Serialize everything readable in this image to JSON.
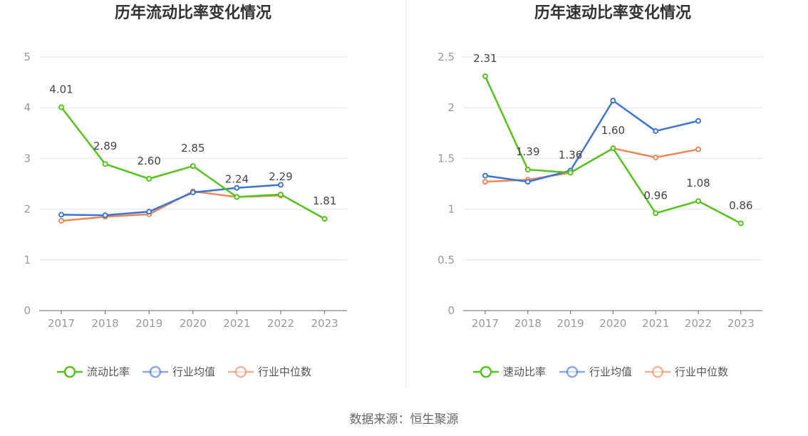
{
  "source": "数据来源：恒生聚源",
  "chart_data": [
    {
      "type": "line",
      "title": "历年流动比率变化情况",
      "categories": [
        "2017",
        "2018",
        "2019",
        "2020",
        "2021",
        "2022",
        "2023"
      ],
      "ylim": [
        0,
        5
      ],
      "yticks": [
        0,
        1,
        2,
        3,
        4,
        5
      ],
      "ytick_labels": [
        "0",
        "1",
        "2",
        "3",
        "4",
        "5"
      ],
      "grid": true,
      "legend_position": "bottom",
      "series": [
        {
          "name": "流动比率",
          "color": "#52c41a",
          "values": [
            4.01,
            2.89,
            2.6,
            2.85,
            2.24,
            2.29,
            1.81
          ],
          "labels": [
            "4.01",
            "2.89",
            "2.60",
            "2.85",
            "2.24",
            "2.29",
            "1.81"
          ]
        },
        {
          "name": "行业均值",
          "color": "#3b73d9",
          "values": [
            1.89,
            1.88,
            1.95,
            2.33,
            2.42,
            2.48,
            null
          ]
        },
        {
          "name": "行业中位数",
          "color": "#ee8655",
          "values": [
            1.77,
            1.85,
            1.9,
            2.35,
            2.24,
            2.27,
            null
          ]
        }
      ]
    },
    {
      "type": "line",
      "title": "历年速动比率变化情况",
      "categories": [
        "2017",
        "2018",
        "2019",
        "2020",
        "2021",
        "2022",
        "2023"
      ],
      "ylim": [
        0,
        2.5
      ],
      "yticks": [
        0,
        0.5,
        1,
        1.5,
        2,
        2.5
      ],
      "ytick_labels": [
        "0",
        "0.5",
        "1",
        "1.5",
        "2",
        "2.5"
      ],
      "grid": true,
      "legend_position": "bottom",
      "series": [
        {
          "name": "速动比率",
          "color": "#52c41a",
          "values": [
            2.31,
            1.39,
            1.36,
            1.6,
            0.96,
            1.08,
            0.86
          ],
          "labels": [
            "2.31",
            "1.39",
            "1.36",
            "1.60",
            "0.96",
            "1.08",
            "0.86"
          ]
        },
        {
          "name": "行业均值",
          "color": "#3b73d9",
          "values": [
            1.33,
            1.27,
            1.38,
            2.07,
            1.77,
            1.87,
            null
          ]
        },
        {
          "name": "行业中位数",
          "color": "#ee8655",
          "values": [
            1.27,
            1.29,
            1.36,
            1.6,
            1.51,
            1.59,
            null
          ]
        }
      ]
    }
  ]
}
